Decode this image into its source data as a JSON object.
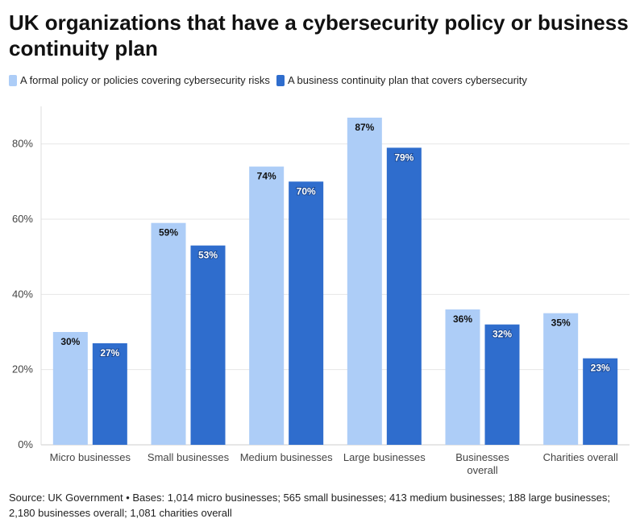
{
  "chart_data": {
    "type": "bar",
    "title": "UK organizations that have a cybersecurity policy or business continuity plan",
    "categories": [
      "Micro businesses",
      "Small businesses",
      "Medium businesses",
      "Large businesses",
      "Businesses overall",
      "Charities overall"
    ],
    "series": [
      {
        "name": "A formal policy or policies covering cybersecurity risks",
        "color": "#adcdf7",
        "values": [
          30,
          59,
          74,
          87,
          36,
          35
        ]
      },
      {
        "name": "A business continuity plan that covers cybersecurity",
        "color": "#2f6dcd",
        "values": [
          27,
          53,
          70,
          79,
          32,
          23
        ]
      }
    ],
    "value_suffix": "%",
    "ylim": [
      0,
      90
    ],
    "yticks": [
      0,
      20,
      40,
      60,
      80
    ],
    "ytick_labels": [
      "0%",
      "20%",
      "40%",
      "60%",
      "80%"
    ],
    "xlabel": "",
    "ylabel": "",
    "legend": "top-left",
    "grid": true
  },
  "source": "Source: UK Government • Bases: 1,014 micro businesses; 565 small businesses; 413 medium businesses; 188 large businesses; 2,180 businesses overall; 1,081 charities overall"
}
